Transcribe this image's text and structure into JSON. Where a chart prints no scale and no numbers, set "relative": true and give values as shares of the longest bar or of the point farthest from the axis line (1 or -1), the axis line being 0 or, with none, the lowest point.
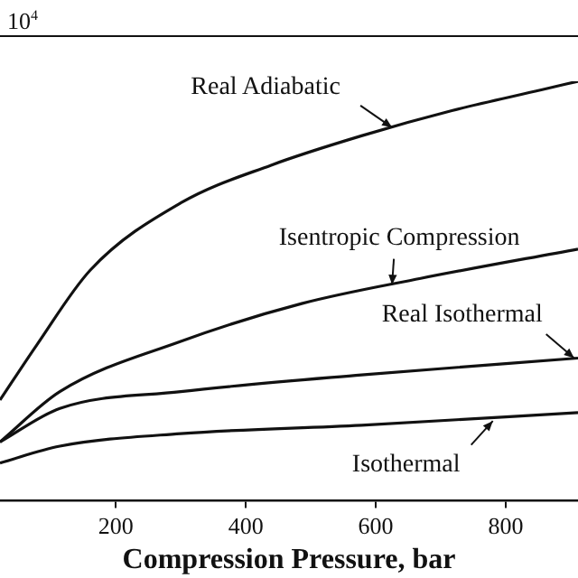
{
  "chart_data": {
    "type": "line",
    "relative": true,
    "xlabel": "Compression Pressure, bar",
    "xlim": [
      22,
      911
    ],
    "xticks": [
      200,
      400,
      600,
      800
    ],
    "grid": false,
    "legend": false,
    "marker": "none",
    "line_style": "solid",
    "series": [
      {
        "color": "#111111",
        "x": [
          22,
          78,
          161,
          300,
          439,
          578,
          717,
          856,
          911
        ],
        "values": [
          0.24,
          0.37,
          0.55,
          0.71,
          0.8,
          0.87,
          0.93,
          0.98,
          1
        ]
      },
      {
        "color": "#111111",
        "x": [
          22,
          114,
          300,
          486,
          669,
          911
        ],
        "values": [
          0.14,
          0.26,
          0.38,
          0.47,
          0.53,
          0.6
        ]
      },
      {
        "color": "#111111",
        "x": [
          22,
          114,
          300,
          578,
          911
        ],
        "values": [
          0.14,
          0.22,
          0.26,
          0.3,
          0.34
        ]
      },
      {
        "color": "#111111",
        "x": [
          22,
          114,
          300,
          578,
          911
        ],
        "values": [
          0.09,
          0.13,
          0.16,
          0.18,
          0.21
        ]
      }
    ],
    "annotations": [
      "10$^{4}$",
      {
        "text": "Real Adiabatic",
        "x": 625,
        "y": 0.89
      },
      {
        "text": "Isentropic Compression",
        "x": 625,
        "y": 0.515
      },
      {
        "text": "Real Isothermal",
        "x": 905,
        "y": 0.34
      },
      {
        "text": "Isothermal",
        "x": 780,
        "y": 0.19
      }
    ]
  }
}
